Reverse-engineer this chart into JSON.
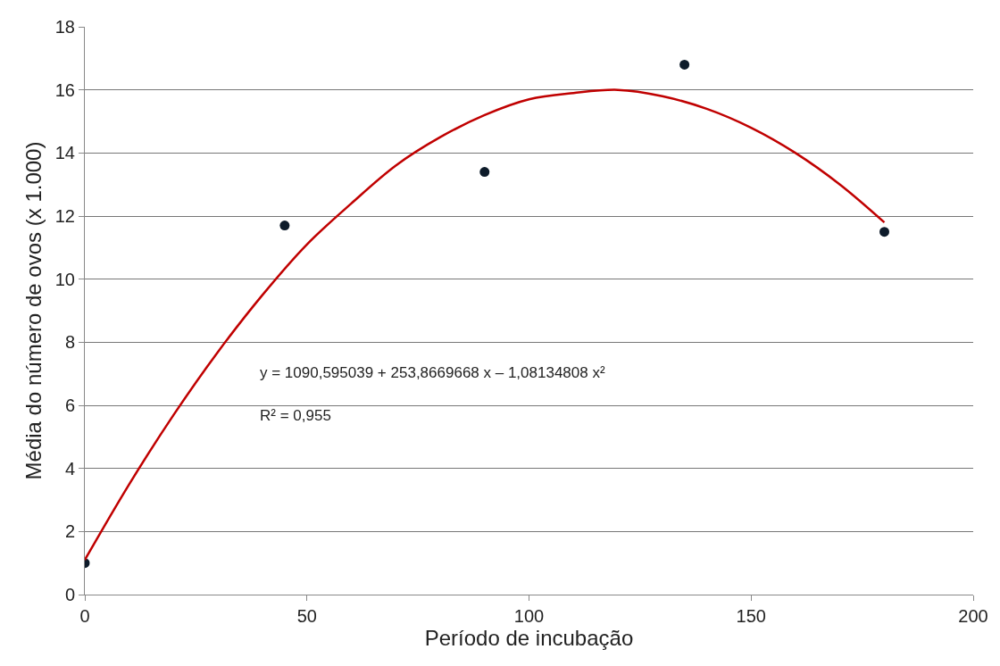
{
  "chart_data": {
    "type": "scatter",
    "xlabel": "Período de incubação",
    "ylabel": "Média do número de ovos (x 1.000)",
    "xlim": [
      0,
      200
    ],
    "xticks": [
      0,
      50,
      100,
      150,
      200
    ],
    "ylim": [
      0,
      18
    ],
    "yticks": [
      0,
      2,
      4,
      6,
      8,
      10,
      12,
      14,
      16,
      18
    ],
    "grid": "y",
    "marker": "circle",
    "series": [
      {
        "color": "#0d1b2a",
        "x": [
          0,
          45,
          90,
          135,
          180
        ],
        "values": [
          1.0,
          11.7,
          13.4,
          16.8,
          11.5
        ]
      },
      {
        "type": "line",
        "color": "#c00000",
        "marker": "none",
        "x": [
          0,
          10,
          20,
          30,
          40,
          50,
          60,
          70,
          80,
          90,
          100,
          110,
          120,
          130,
          140,
          150,
          160,
          170,
          180
        ],
        "values": [
          1.1,
          3.5,
          5.7,
          7.7,
          9.5,
          11.1,
          12.4,
          13.6,
          14.5,
          15.2,
          15.7,
          15.9,
          16.0,
          15.8,
          15.4,
          14.8,
          14.0,
          13.0,
          11.8
        ]
      }
    ],
    "annotations": [
      "y = 1090,595039 + 253,8669668 x – 1,08134808 x²",
      "R² = 0,955"
    ]
  }
}
